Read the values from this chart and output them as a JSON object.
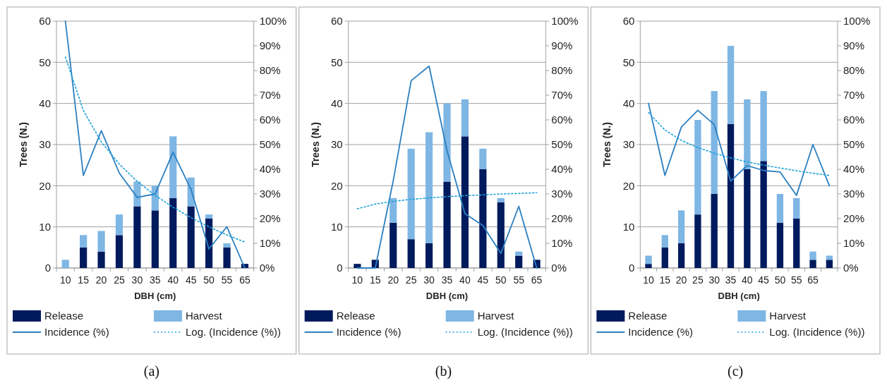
{
  "chart_data": [
    {
      "type": "bar",
      "title": "(a)",
      "xlabel": "DBH (cm)",
      "ylabel": "Trees (N.)",
      "stacked": true,
      "grid": "y",
      "legend": "bottom",
      "marker": "none",
      "categories": [
        "10",
        "15",
        "20",
        "25",
        "30",
        "35",
        "40",
        "45",
        "50",
        "55",
        "65"
      ],
      "ylim": [
        0,
        60
      ],
      "yticks": [
        0,
        10,
        20,
        30,
        40,
        50,
        60
      ],
      "y2lim": [
        0,
        100
      ],
      "y2ticks": [
        {
          "value": 0,
          "label": "0%"
        },
        {
          "value": 10,
          "label": "10%"
        },
        {
          "value": 20,
          "label": "20%"
        },
        {
          "value": 30,
          "label": "30%"
        },
        {
          "value": 40,
          "label": "40%"
        },
        {
          "value": 50,
          "label": "50%"
        },
        {
          "value": 60,
          "label": "60%"
        },
        {
          "value": 70,
          "label": "70%"
        },
        {
          "value": 80,
          "label": "80%"
        },
        {
          "value": 90,
          "label": "90%"
        },
        {
          "value": 100,
          "label": "100%"
        }
      ],
      "series": [
        {
          "name": "Release",
          "color": "#001a5e",
          "values": [
            0,
            5,
            4,
            8,
            15,
            14,
            17,
            15,
            12,
            5,
            1
          ]
        },
        {
          "name": "Harvest",
          "color": "#7eb6e4",
          "values": [
            2,
            3,
            5,
            5,
            6,
            6,
            15,
            7,
            1,
            1,
            0
          ]
        },
        {
          "name": "Incidence (%)",
          "type": "line",
          "axis": "y2",
          "line_style": "solid",
          "color": "#2a7fc1",
          "values": [
            100,
            37.5,
            55.6,
            38.5,
            28.6,
            30,
            46.9,
            31.8,
            7.7,
            16.7,
            0
          ]
        },
        {
          "name": "Log. (Incidence (%))",
          "type": "line",
          "axis": "y2",
          "line_style": "dotted",
          "color": "#1ba1d8",
          "values": [
            85.5,
            63.8,
            51.1,
            42.1,
            35.1,
            29.4,
            24.6,
            20.4,
            16.7,
            13.4,
            10.5
          ]
        }
      ]
    },
    {
      "type": "bar",
      "title": "(b)",
      "xlabel": "DBH (cm)",
      "ylabel": "Trees (N.)",
      "stacked": true,
      "grid": "y",
      "legend": "bottom",
      "marker": "none",
      "categories": [
        "10",
        "15",
        "20",
        "25",
        "30",
        "35",
        "40",
        "45",
        "50",
        "55",
        "65"
      ],
      "ylim": [
        0,
        60
      ],
      "yticks": [
        0,
        10,
        20,
        30,
        40,
        50,
        60
      ],
      "y2lim": [
        0,
        100
      ],
      "y2ticks": [
        {
          "value": 0,
          "label": "0%"
        },
        {
          "value": 10,
          "label": "10%"
        },
        {
          "value": 20,
          "label": "20%"
        },
        {
          "value": 30,
          "label": "30%"
        },
        {
          "value": 40,
          "label": "40%"
        },
        {
          "value": 50,
          "label": "50%"
        },
        {
          "value": 60,
          "label": "60%"
        },
        {
          "value": 70,
          "label": "70%"
        },
        {
          "value": 80,
          "label": "80%"
        },
        {
          "value": 90,
          "label": "90%"
        },
        {
          "value": 100,
          "label": "100%"
        }
      ],
      "series": [
        {
          "name": "Release",
          "color": "#001a5e",
          "values": [
            1,
            2,
            11,
            7,
            6,
            21,
            32,
            24,
            16,
            3,
            2
          ]
        },
        {
          "name": "Harvest",
          "color": "#7eb6e4",
          "values": [
            0,
            0,
            6,
            22,
            27,
            19,
            9,
            5,
            1,
            1,
            0
          ]
        },
        {
          "name": "Incidence (%)",
          "type": "line",
          "axis": "y2",
          "line_style": "solid",
          "color": "#2a7fc1",
          "values": [
            0,
            0,
            35.3,
            75.9,
            81.8,
            47.5,
            22,
            17.2,
            5.9,
            25,
            0
          ]
        },
        {
          "name": "Log. (Incidence (%))",
          "type": "line",
          "axis": "y2",
          "line_style": "dotted",
          "color": "#1ba1d8",
          "values": [
            24,
            25.9,
            27,
            27.8,
            28.4,
            28.9,
            29.3,
            29.6,
            30,
            30.2,
            30.5
          ]
        }
      ]
    },
    {
      "type": "bar",
      "title": "(c)",
      "xlabel": "DBH (cm)",
      "ylabel": "Trees (N.)",
      "stacked": true,
      "grid": "y",
      "legend": "bottom",
      "marker": "none",
      "categories": [
        "10",
        "15",
        "20",
        "25",
        "30",
        "35",
        "40",
        "45",
        "50",
        "55",
        "65",
        null
      ],
      "ylim": [
        0,
        60
      ],
      "yticks": [
        0,
        10,
        20,
        30,
        40,
        50,
        60
      ],
      "y2lim": [
        0,
        100
      ],
      "y2ticks": [
        {
          "value": 0,
          "label": "0%"
        },
        {
          "value": 10,
          "label": "10%"
        },
        {
          "value": 20,
          "label": "20%"
        },
        {
          "value": 30,
          "label": "30%"
        },
        {
          "value": 40,
          "label": "40%"
        },
        {
          "value": 50,
          "label": "50%"
        },
        {
          "value": 60,
          "label": "60%"
        },
        {
          "value": 70,
          "label": "70%"
        },
        {
          "value": 80,
          "label": "80%"
        },
        {
          "value": 90,
          "label": "90%"
        },
        {
          "value": 100,
          "label": "100%"
        }
      ],
      "series": [
        {
          "name": "Release",
          "color": "#001a5e",
          "values": [
            1,
            5,
            6,
            13,
            18,
            35,
            24,
            26,
            11,
            12,
            2,
            2
          ]
        },
        {
          "name": "Harvest",
          "color": "#7eb6e4",
          "values": [
            2,
            3,
            8,
            23,
            25,
            19,
            17,
            17,
            7,
            5,
            2,
            1
          ]
        },
        {
          "name": "Incidence (%)",
          "type": "line",
          "axis": "y2",
          "line_style": "solid",
          "color": "#2a7fc1",
          "values": [
            66.7,
            37.5,
            57.1,
            63.9,
            58.1,
            35.2,
            41.5,
            39.5,
            38.9,
            29.4,
            50,
            33.3
          ]
        },
        {
          "name": "Log. (Incidence (%))",
          "type": "line",
          "axis": "y2",
          "line_style": "dotted",
          "color": "#1ba1d8",
          "values": [
            63,
            55.9,
            51.7,
            48.8,
            46.5,
            44.6,
            43,
            41.7,
            40.5,
            39.4,
            38.4,
            37.5
          ]
        }
      ]
    }
  ]
}
